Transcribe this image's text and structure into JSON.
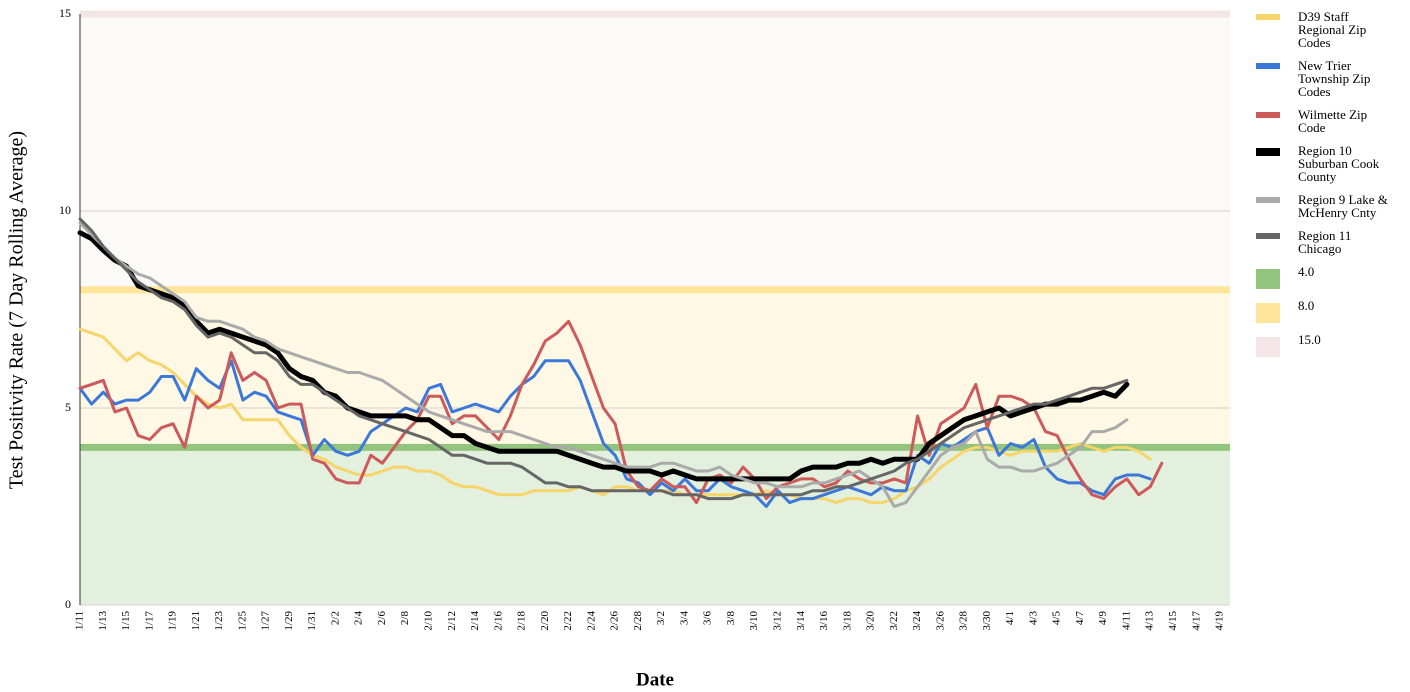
{
  "chart_data": {
    "type": "line",
    "xlabel": "Date",
    "ylabel": "Test Positivity Rate (7 Day Rolling Average)",
    "categories": [
      "1/11",
      null,
      "1/13",
      null,
      "1/15",
      null,
      "1/17",
      null,
      "1/19",
      null,
      "1/21",
      null,
      "1/23",
      null,
      "1/25",
      null,
      "1/27",
      null,
      "1/29",
      null,
      "1/31",
      null,
      "2/2",
      null,
      "2/4",
      null,
      "2/6",
      null,
      "2/8",
      null,
      "2/10",
      null,
      "2/12",
      null,
      "2/14",
      null,
      "2/16",
      null,
      "2/18",
      null,
      "2/20",
      null,
      "2/22",
      null,
      "2/24",
      null,
      "2/26",
      null,
      "2/28",
      null,
      "3/2",
      null,
      "3/4",
      null,
      "3/6",
      null,
      "3/8",
      null,
      "3/10",
      null,
      "3/12",
      null,
      "3/14",
      null,
      "3/16",
      null,
      "3/18",
      null,
      "3/20",
      null,
      "3/22",
      null,
      "3/24",
      null,
      "3/26",
      null,
      "3/28",
      null,
      "3/30",
      null,
      "4/1",
      null,
      "4/3",
      null,
      "4/5",
      null,
      "4/7",
      null,
      "4/9",
      null,
      "4/11",
      null,
      "4/13",
      null,
      "4/15",
      null,
      "4/17",
      null,
      "4/19",
      null
    ],
    "ylim": [
      0,
      15
    ],
    "yticks": [
      0,
      5,
      10,
      15
    ],
    "grid": true,
    "legend": "right",
    "series": [
      {
        "name": "D39 Staff Regional Zip Codes",
        "color": "#f6d56b",
        "width": 3,
        "values": [
          7.0,
          6.9,
          6.8,
          6.5,
          6.2,
          6.4,
          6.2,
          6.1,
          5.9,
          5.6,
          5.3,
          5.1,
          5.0,
          5.1,
          4.7,
          4.7,
          4.7,
          4.7,
          4.3,
          4.0,
          3.8,
          3.7,
          3.5,
          3.4,
          3.3,
          3.3,
          3.4,
          3.5,
          3.5,
          3.4,
          3.4,
          3.3,
          3.1,
          3.0,
          3.0,
          2.9,
          2.8,
          2.8,
          2.8,
          2.9,
          2.9,
          2.9,
          2.9,
          3.0,
          2.9,
          2.8,
          3.0,
          3.0,
          2.9,
          2.9,
          2.9,
          2.9,
          2.8,
          2.8,
          2.8,
          2.8,
          2.8,
          2.8,
          2.8,
          2.9,
          2.8,
          2.8,
          2.7,
          2.7,
          2.7,
          2.6,
          2.7,
          2.7,
          2.6,
          2.6,
          2.7,
          2.9,
          3.0,
          3.2,
          3.5,
          3.7,
          3.9,
          4.0,
          4.0,
          3.9,
          3.8,
          3.9,
          3.9,
          3.9,
          3.9,
          4.0,
          4.1,
          4.0,
          3.9,
          4.0,
          4.0,
          3.9,
          3.7,
          null,
          null,
          null,
          null,
          null,
          null,
          null
        ]
      },
      {
        "name": "New Trier Township Zip Codes",
        "color": "#3c78d8",
        "width": 3,
        "values": [
          5.5,
          5.1,
          5.4,
          5.1,
          5.2,
          5.2,
          5.4,
          5.8,
          5.8,
          5.2,
          6.0,
          5.7,
          5.5,
          6.2,
          5.2,
          5.4,
          5.3,
          4.9,
          4.8,
          4.7,
          3.8,
          4.2,
          3.9,
          3.8,
          3.9,
          4.4,
          4.6,
          4.8,
          5.0,
          4.9,
          5.5,
          5.6,
          4.9,
          5.0,
          5.1,
          5.0,
          4.9,
          5.3,
          5.6,
          5.8,
          6.2,
          6.2,
          6.2,
          5.7,
          4.9,
          4.1,
          3.8,
          3.2,
          3.1,
          2.8,
          3.1,
          2.9,
          3.2,
          2.9,
          2.9,
          3.2,
          3.0,
          2.9,
          2.8,
          2.5,
          2.9,
          2.6,
          2.7,
          2.7,
          2.8,
          2.9,
          3.0,
          2.9,
          2.8,
          3.0,
          2.9,
          2.9,
          3.8,
          3.6,
          4.1,
          4.0,
          4.2,
          4.4,
          4.5,
          3.8,
          4.1,
          4.0,
          4.2,
          3.5,
          3.2,
          3.1,
          3.1,
          2.9,
          2.8,
          3.2,
          3.3,
          3.3,
          3.2,
          null,
          null,
          null,
          null,
          null,
          null,
          null
        ]
      },
      {
        "name": "Wilmette Zip Code",
        "color": "#cc5a5a",
        "width": 3,
        "values": [
          5.5,
          5.6,
          5.7,
          4.9,
          5.0,
          4.3,
          4.2,
          4.5,
          4.6,
          4.0,
          5.3,
          5.0,
          5.2,
          6.4,
          5.7,
          5.9,
          5.7,
          5.0,
          5.1,
          5.1,
          3.7,
          3.6,
          3.2,
          3.1,
          3.1,
          3.8,
          3.6,
          4.0,
          4.4,
          4.7,
          5.3,
          5.3,
          4.6,
          4.8,
          4.8,
          4.5,
          4.2,
          4.8,
          5.6,
          6.1,
          6.7,
          6.9,
          7.2,
          6.6,
          5.8,
          5.0,
          4.6,
          3.4,
          3.0,
          2.9,
          3.2,
          3.0,
          3.0,
          2.6,
          3.2,
          3.3,
          3.1,
          3.5,
          3.2,
          2.7,
          3.0,
          3.1,
          3.2,
          3.2,
          3.0,
          3.1,
          3.4,
          3.2,
          3.1,
          3.1,
          3.2,
          3.1,
          4.8,
          3.8,
          4.6,
          4.8,
          5.0,
          5.6,
          4.5,
          5.3,
          5.3,
          5.2,
          5.0,
          4.4,
          4.3,
          3.7,
          3.2,
          2.8,
          2.7,
          3.0,
          3.2,
          2.8,
          3.0,
          3.6,
          null,
          null,
          null,
          null,
          null,
          null
        ]
      },
      {
        "name": "Region 10 Suburban Cook County",
        "color": "#000000",
        "width": 5,
        "values": [
          9.45,
          9.3,
          9.0,
          8.75,
          8.6,
          8.1,
          8.0,
          7.9,
          7.8,
          7.6,
          7.2,
          6.9,
          7.0,
          6.9,
          6.8,
          6.7,
          6.6,
          6.4,
          6.0,
          5.8,
          5.7,
          5.4,
          5.3,
          5.0,
          4.9,
          4.8,
          4.8,
          4.8,
          4.8,
          4.7,
          4.7,
          4.5,
          4.3,
          4.3,
          4.1,
          4.0,
          3.9,
          3.9,
          3.9,
          3.9,
          3.9,
          3.9,
          3.8,
          3.7,
          3.6,
          3.5,
          3.5,
          3.4,
          3.4,
          3.4,
          3.3,
          3.4,
          3.3,
          3.2,
          3.2,
          3.2,
          3.2,
          3.2,
          3.2,
          3.2,
          3.2,
          3.2,
          3.4,
          3.5,
          3.5,
          3.5,
          3.6,
          3.6,
          3.7,
          3.6,
          3.7,
          3.7,
          3.7,
          4.1,
          4.3,
          4.5,
          4.7,
          4.8,
          4.9,
          5.0,
          4.8,
          4.9,
          5.0,
          5.1,
          5.1,
          5.2,
          5.2,
          5.3,
          5.4,
          5.3,
          5.6,
          null,
          null,
          null,
          null,
          null,
          null,
          null,
          null,
          null
        ]
      },
      {
        "name": "Region 9 Lake & McHenry Cnty",
        "color": "#aaaaaa",
        "width": 3,
        "values": [
          9.7,
          9.4,
          9.1,
          8.8,
          8.6,
          8.4,
          8.3,
          8.1,
          7.9,
          7.7,
          7.3,
          7.2,
          7.2,
          7.1,
          7.0,
          6.8,
          6.7,
          6.5,
          6.4,
          6.3,
          6.2,
          6.1,
          6.0,
          5.9,
          5.9,
          5.8,
          5.7,
          5.5,
          5.3,
          5.1,
          4.9,
          4.8,
          4.7,
          4.6,
          4.5,
          4.4,
          4.4,
          4.4,
          4.3,
          4.2,
          4.1,
          4.0,
          4.0,
          3.9,
          3.8,
          3.7,
          3.6,
          3.5,
          3.5,
          3.5,
          3.6,
          3.6,
          3.5,
          3.4,
          3.4,
          3.5,
          3.3,
          3.2,
          3.1,
          3.1,
          3.0,
          3.0,
          3.0,
          3.1,
          3.1,
          3.2,
          3.3,
          3.4,
          3.2,
          3.0,
          2.5,
          2.6,
          3.0,
          3.4,
          3.8,
          4.0,
          4.1,
          4.4,
          3.7,
          3.5,
          3.5,
          3.4,
          3.4,
          3.5,
          3.6,
          3.8,
          4.0,
          4.4,
          4.4,
          4.5,
          4.7,
          null,
          null,
          null,
          null,
          null,
          null,
          null,
          null,
          null
        ]
      },
      {
        "name": "Region 11 Chicago",
        "color": "#666666",
        "width": 3,
        "values": [
          9.8,
          9.5,
          9.1,
          8.8,
          8.5,
          8.2,
          8.0,
          7.8,
          7.7,
          7.5,
          7.1,
          6.8,
          6.9,
          6.8,
          6.6,
          6.4,
          6.4,
          6.2,
          5.8,
          5.6,
          5.6,
          5.4,
          5.2,
          5.0,
          4.8,
          4.7,
          4.6,
          4.5,
          4.4,
          4.3,
          4.2,
          4.0,
          3.8,
          3.8,
          3.7,
          3.6,
          3.6,
          3.6,
          3.5,
          3.3,
          3.1,
          3.1,
          3.0,
          3.0,
          2.9,
          2.9,
          2.9,
          2.9,
          2.9,
          2.9,
          2.9,
          2.8,
          2.8,
          2.8,
          2.7,
          2.7,
          2.7,
          2.8,
          2.8,
          2.8,
          2.8,
          2.8,
          2.8,
          2.9,
          2.9,
          3.0,
          3.0,
          3.1,
          3.2,
          3.3,
          3.4,
          3.6,
          3.7,
          3.9,
          4.1,
          4.3,
          4.5,
          4.6,
          4.7,
          4.8,
          4.9,
          5.0,
          5.1,
          5.1,
          5.2,
          5.3,
          5.4,
          5.5,
          5.5,
          5.6,
          5.7,
          null,
          null,
          null,
          null,
          null,
          null,
          null,
          null,
          null
        ]
      }
    ],
    "bands": [
      {
        "name": "4.0",
        "value": 4,
        "color": "#93c47d"
      },
      {
        "name": "8.0",
        "value": 8,
        "color": "#ffe599"
      },
      {
        "name": "15.0",
        "value": 15,
        "color": "#f4e6e6"
      }
    ]
  }
}
